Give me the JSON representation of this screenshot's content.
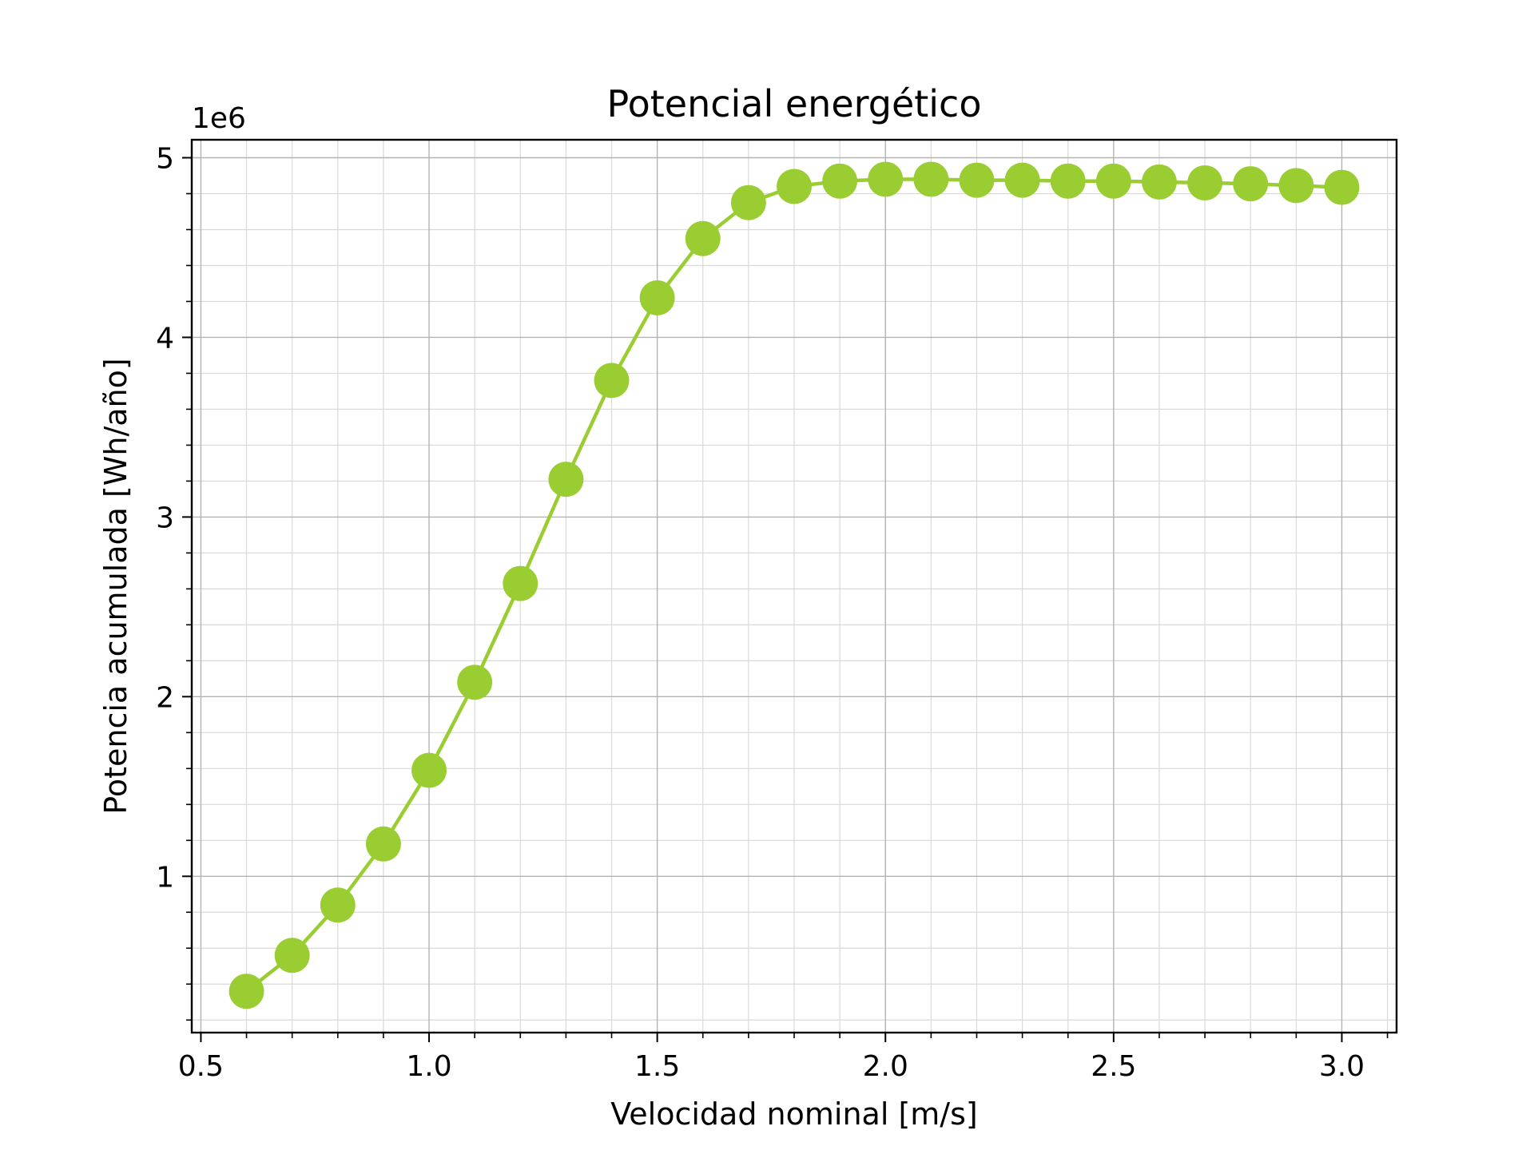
{
  "chart_data": {
    "type": "line",
    "title": "Potencial energético",
    "xlabel": "Velocidad nominal [m/s]",
    "ylabel": "Potencia acumulada [Wh/año]",
    "y_offset_label": "1e6",
    "xlim": [
      0.48,
      3.12
    ],
    "ylim": [
      0.13,
      5.1
    ],
    "x_ticks": [
      0.5,
      1.0,
      1.5,
      2.0,
      2.5,
      3.0
    ],
    "x_tick_labels": [
      "0.5",
      "1.0",
      "1.5",
      "2.0",
      "2.5",
      "3.0"
    ],
    "y_ticks": [
      1,
      2,
      3,
      4,
      5
    ],
    "y_tick_labels": [
      "1",
      "2",
      "3",
      "4",
      "5"
    ],
    "x_minor_step": 0.1,
    "y_minor_step": 0.2,
    "grid": true,
    "legend": "none",
    "color": "#9acd32",
    "series": [
      {
        "x": [
          0.6,
          0.7,
          0.8,
          0.9,
          1.0,
          1.1,
          1.2,
          1.3,
          1.4,
          1.5,
          1.6,
          1.7,
          1.8,
          1.9,
          2.0,
          2.1,
          2.2,
          2.3,
          2.4,
          2.5,
          2.6,
          2.7,
          2.8,
          2.9,
          3.0
        ],
        "y": [
          0.36,
          0.56,
          0.84,
          1.18,
          1.59,
          2.08,
          2.63,
          3.21,
          3.76,
          4.22,
          4.55,
          4.75,
          4.84,
          4.87,
          4.88,
          4.88,
          4.875,
          4.875,
          4.87,
          4.87,
          4.865,
          4.86,
          4.855,
          4.845,
          4.835
        ]
      }
    ]
  }
}
